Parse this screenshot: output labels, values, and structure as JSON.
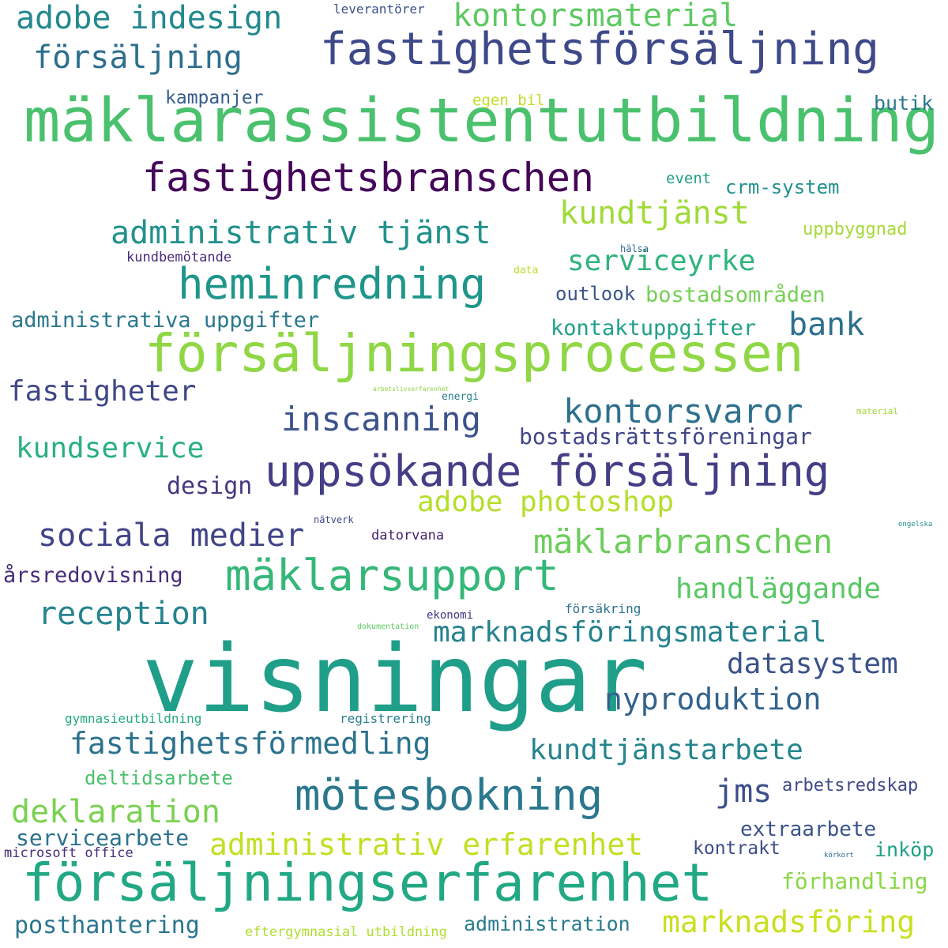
{
  "colors": {
    "background": "#ffffff",
    "palette": [
      "#440154",
      "#46327e",
      "#365c8d",
      "#277f8e",
      "#1fa187",
      "#4ac16d",
      "#a0da39",
      "#fde725"
    ]
  },
  "words": [
    {
      "text": "visningar",
      "color": "#1f9e89"
    },
    {
      "text": "mäklarassistentutbildning",
      "color": "#4ac16d"
    },
    {
      "text": "försäljningserfarenhet",
      "color": "#22a884"
    },
    {
      "text": "försäljningsprocessen",
      "color": "#8fd744"
    },
    {
      "text": "fastighetsförsäljning",
      "color": "#3e4989"
    },
    {
      "text": "uppsökande försäljning",
      "color": "#433e85"
    },
    {
      "text": "fastighetsbranschen",
      "color": "#450559"
    },
    {
      "text": "mäklarsupport",
      "color": "#35b779"
    },
    {
      "text": "heminredning",
      "color": "#1f968b"
    },
    {
      "text": "mötesbokning",
      "color": "#2a788e"
    },
    {
      "text": "mäklarbranschen",
      "color": "#6ccd5a"
    },
    {
      "text": "administrativ tjänst",
      "color": "#21918c"
    },
    {
      "text": "kontorsmaterial",
      "color": "#5ec962"
    },
    {
      "text": "adobe indesign",
      "color": "#23898e"
    },
    {
      "text": "försäljning",
      "color": "#2e6e8e"
    },
    {
      "text": "kundtjänst",
      "color": "#a0da39"
    },
    {
      "text": "serviceyrke",
      "color": "#2fb47c"
    },
    {
      "text": "kontorsvaror",
      "color": "#2d708e"
    },
    {
      "text": "inscanning",
      "color": "#3b528b"
    },
    {
      "text": "sociala medier",
      "color": "#414487"
    },
    {
      "text": "adobe photoshop",
      "color": "#b5de2b"
    },
    {
      "text": "administrativ erfarenhet",
      "color": "#c2df23"
    },
    {
      "text": "marknadsföring",
      "color": "#c8e020"
    },
    {
      "text": "fastighetsförmedling",
      "color": "#2c728e"
    },
    {
      "text": "kundtjänstarbete",
      "color": "#25858e"
    },
    {
      "text": "marknadsföringsmaterial",
      "color": "#26828e"
    },
    {
      "text": "deklaration",
      "color": "#7ad151"
    },
    {
      "text": "reception",
      "color": "#26838f"
    },
    {
      "text": "fastigheter",
      "color": "#3f4788"
    },
    {
      "text": "kundservice",
      "color": "#2ab07f"
    },
    {
      "text": "handläggande",
      "color": "#58c765"
    },
    {
      "text": "datasystem",
      "color": "#3b5289"
    },
    {
      "text": "nyproduktion",
      "color": "#33638d"
    },
    {
      "text": "bank",
      "color": "#2d6f8e"
    },
    {
      "text": "jms",
      "color": "#3c4f8a"
    },
    {
      "text": "administrativa uppgifter",
      "color": "#2a788e"
    },
    {
      "text": "bostadsrättsföreningar",
      "color": "#404688"
    },
    {
      "text": "kontaktuppgifter",
      "color": "#1fa088"
    },
    {
      "text": "bostadsområden",
      "color": "#74d055"
    },
    {
      "text": "årsredovisning",
      "color": "#472d7b"
    },
    {
      "text": "design",
      "color": "#453781"
    },
    {
      "text": "outlook",
      "color": "#39568c"
    },
    {
      "text": "crm-system",
      "color": "#21908d"
    },
    {
      "text": "uppbyggnad",
      "color": "#a5db36"
    },
    {
      "text": "butik",
      "color": "#2a788e"
    },
    {
      "text": "kampanjer",
      "color": "#365d8d"
    },
    {
      "text": "egen bil",
      "color": "#bddf26"
    },
    {
      "text": "event",
      "color": "#1fa187"
    },
    {
      "text": "leverantörer",
      "color": "#3b528b"
    },
    {
      "text": "kundbemötande",
      "color": "#482979"
    },
    {
      "text": "hälsa",
      "color": "#31688e"
    },
    {
      "text": "data",
      "color": "#b8de29"
    },
    {
      "text": "energi",
      "color": "#277f8e"
    },
    {
      "text": "arbetslivserfarenhet",
      "color": "#90d743"
    },
    {
      "text": "material",
      "color": "#a2da37"
    },
    {
      "text": "engelska",
      "color": "#21918c"
    },
    {
      "text": "nätverk",
      "color": "#404588"
    },
    {
      "text": "datorvana",
      "color": "#481f70"
    },
    {
      "text": "ekonomi",
      "color": "#46337f"
    },
    {
      "text": "försäkring",
      "color": "#2c738e"
    },
    {
      "text": "dokumentation",
      "color": "#5ec962"
    },
    {
      "text": "gymnasieutbildning",
      "color": "#23a983"
    },
    {
      "text": "registrering",
      "color": "#277e8e"
    },
    {
      "text": "deltidsarbete",
      "color": "#4ac16d"
    },
    {
      "text": "arbetsredskap",
      "color": "#3e4a89"
    },
    {
      "text": "extraarbete",
      "color": "#3a538b"
    },
    {
      "text": "servicearbete",
      "color": "#2c728e"
    },
    {
      "text": "microsoft office",
      "color": "#472c7a"
    },
    {
      "text": "kontrakt",
      "color": "#3d4d8a"
    },
    {
      "text": "inköp",
      "color": "#1fa188"
    },
    {
      "text": "körkort",
      "color": "#31688e"
    },
    {
      "text": "förhandling",
      "color": "#8bd646"
    },
    {
      "text": "posthantering",
      "color": "#2a768e"
    },
    {
      "text": "eftergymnasial utbildning",
      "color": "#b0dd2f"
    },
    {
      "text": "administration",
      "color": "#297b8e"
    }
  ]
}
